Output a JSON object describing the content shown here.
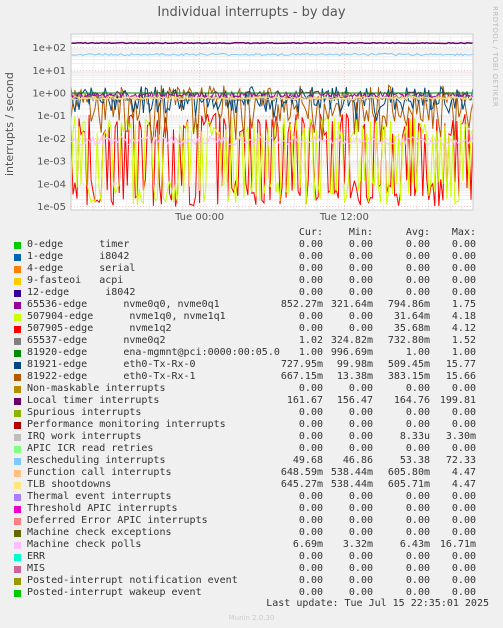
{
  "chart_data": {
    "type": "line",
    "title": "Individual interrupts - by day",
    "ylabel": "interrupts / second",
    "yscale": "log",
    "ylim": [
      7e-06,
      400
    ],
    "y_ticks": [
      "1e+02",
      "1e+01",
      "1e+00",
      "1e-01",
      "1e-02",
      "1e-03",
      "1e-04",
      "1e-05"
    ],
    "x_ticks": [
      "Tue 00:00",
      "Tue 12:00"
    ],
    "grid": true,
    "background": "#ffffff",
    "series_summary": [
      {
        "name": "Local timer interrupts",
        "approx_level": 160
      },
      {
        "name": "65536-edge",
        "approx_level": 0.85
      },
      {
        "name": "Rescheduling interrupts",
        "approx_level": 50
      },
      {
        "name": "81921-edge",
        "approx_level": 0.5
      },
      {
        "name": "81922-edge",
        "approx_level": 0.4
      },
      {
        "name": "Function call interrupts",
        "approx_level": 0.6
      },
      {
        "name": "TLB shootdowns",
        "approx_level": 0.6
      },
      {
        "name": "507905-edge",
        "approx_level": 0.04
      },
      {
        "name": "507904-edge",
        "approx_level": 0.03
      }
    ]
  },
  "side_text": "RRDTOOL / TOBI OETIKER",
  "columns": {
    "cur": "Cur:",
    "min": "Min:",
    "avg": "Avg:",
    "max": "Max:"
  },
  "legend": [
    {
      "name": "0-edge      timer",
      "color": "#00cc00",
      "cur": "0.00",
      "min": "0.00",
      "avg": "0.00",
      "max": "0.00"
    },
    {
      "name": "1-edge      i8042",
      "color": "#0066b3",
      "cur": "0.00",
      "min": "0.00",
      "avg": "0.00",
      "max": "0.00"
    },
    {
      "name": "4-edge      serial",
      "color": "#ff8000",
      "cur": "0.00",
      "min": "0.00",
      "avg": "0.00",
      "max": "0.00"
    },
    {
      "name": "9-fasteoi   acpi",
      "color": "#ffcc00",
      "cur": "0.00",
      "min": "0.00",
      "avg": "0.00",
      "max": "0.00"
    },
    {
      "name": "12-edge      i8042",
      "color": "#330099",
      "cur": "0.00",
      "min": "0.00",
      "avg": "0.00",
      "max": "0.00"
    },
    {
      "name": "65536-edge      nvme0q0, nvme0q1",
      "color": "#990099",
      "cur": "852.27m",
      "min": "321.64m",
      "avg": "794.86m",
      "max": "1.75"
    },
    {
      "name": "507904-edge      nvme1q0, nvme1q1",
      "color": "#ccff00",
      "cur": "0.00",
      "min": "0.00",
      "avg": "31.64m",
      "max": "4.18"
    },
    {
      "name": "507905-edge      nvme1q2",
      "color": "#ff0000",
      "cur": "0.00",
      "min": "0.00",
      "avg": "35.68m",
      "max": "4.12"
    },
    {
      "name": "65537-edge      nvme0q2",
      "color": "#808080",
      "cur": "1.02",
      "min": "324.82m",
      "avg": "732.80m",
      "max": "1.52"
    },
    {
      "name": "81920-edge      ena-mgmnt@pci:0000:00:05.0",
      "color": "#008f00",
      "cur": "1.00",
      "min": "996.69m",
      "avg": "1.00",
      "max": "1.00"
    },
    {
      "name": "81921-edge      eth0-Tx-Rx-0",
      "color": "#00487d",
      "cur": "727.95m",
      "min": "99.98m",
      "avg": "509.45m",
      "max": "15.77"
    },
    {
      "name": "81922-edge      eth0-Tx-Rx-1",
      "color": "#b35a00",
      "cur": "667.15m",
      "min": "13.38m",
      "avg": "383.15m",
      "max": "15.66"
    },
    {
      "name": "Non-maskable interrupts",
      "color": "#b38f00",
      "cur": "0.00",
      "min": "0.00",
      "avg": "0.00",
      "max": "0.00"
    },
    {
      "name": "Local timer interrupts",
      "color": "#6b006b",
      "cur": "161.67",
      "min": "156.47",
      "avg": "164.76",
      "max": "199.81"
    },
    {
      "name": "Spurious interrupts",
      "color": "#8fb300",
      "cur": "0.00",
      "min": "0.00",
      "avg": "0.00",
      "max": "0.00"
    },
    {
      "name": "Performance monitoring interrupts",
      "color": "#b30000",
      "cur": "0.00",
      "min": "0.00",
      "avg": "0.00",
      "max": "0.00"
    },
    {
      "name": "IRQ work interrupts",
      "color": "#bebebe",
      "cur": "0.00",
      "min": "0.00",
      "avg": "8.33u",
      "max": "3.30m"
    },
    {
      "name": "APIC ICR read retries",
      "color": "#80ff80",
      "cur": "0.00",
      "min": "0.00",
      "avg": "0.00",
      "max": "0.00"
    },
    {
      "name": "Rescheduling interrupts",
      "color": "#80c9ff",
      "cur": "49.68",
      "min": "46.86",
      "avg": "53.38",
      "max": "72.33"
    },
    {
      "name": "Function call interrupts",
      "color": "#ffc080",
      "cur": "648.59m",
      "min": "538.44m",
      "avg": "605.80m",
      "max": "4.47"
    },
    {
      "name": "TLB shootdowns",
      "color": "#ffe680",
      "cur": "645.27m",
      "min": "538.44m",
      "avg": "605.71m",
      "max": "4.47"
    },
    {
      "name": "Thermal event interrupts",
      "color": "#aa80ff",
      "cur": "0.00",
      "min": "0.00",
      "avg": "0.00",
      "max": "0.00"
    },
    {
      "name": "Threshold APIC interrupts",
      "color": "#ee00cc",
      "cur": "0.00",
      "min": "0.00",
      "avg": "0.00",
      "max": "0.00"
    },
    {
      "name": "Deferred Error APIC interrupts",
      "color": "#ff8080",
      "cur": "0.00",
      "min": "0.00",
      "avg": "0.00",
      "max": "0.00"
    },
    {
      "name": "Machine check exceptions",
      "color": "#666600",
      "cur": "0.00",
      "min": "0.00",
      "avg": "0.00",
      "max": "0.00"
    },
    {
      "name": "Machine check polls",
      "color": "#ffbfff",
      "cur": "6.69m",
      "min": "3.32m",
      "avg": "6.43m",
      "max": "16.71m"
    },
    {
      "name": "ERR",
      "color": "#00ffcc",
      "cur": "0.00",
      "min": "0.00",
      "avg": "0.00",
      "max": "0.00"
    },
    {
      "name": "MIS",
      "color": "#cc6699",
      "cur": "0.00",
      "min": "0.00",
      "avg": "0.00",
      "max": "0.00"
    },
    {
      "name": "Posted-interrupt notification event",
      "color": "#999900",
      "cur": "0.00",
      "min": "0.00",
      "avg": "0.00",
      "max": "0.00"
    },
    {
      "name": "Posted-interrupt wakeup event",
      "color": "#00cc00",
      "cur": "0.00",
      "min": "0.00",
      "avg": "0.00",
      "max": "0.00"
    }
  ],
  "footer": "Last update: Tue Jul 15 22:35:01 2025",
  "munin": "Munin 2.0.30"
}
